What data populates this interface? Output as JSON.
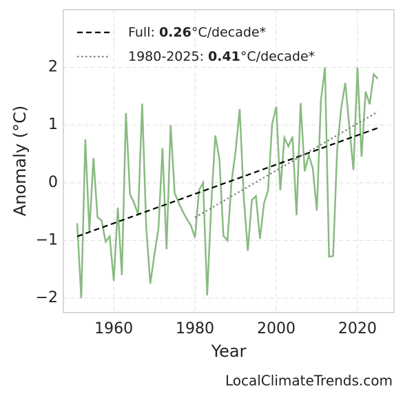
{
  "chart_data": {
    "type": "line",
    "x": [
      1951,
      1952,
      1953,
      1954,
      1955,
      1956,
      1957,
      1958,
      1959,
      1960,
      1961,
      1962,
      1963,
      1964,
      1965,
      1966,
      1967,
      1968,
      1969,
      1970,
      1971,
      1972,
      1973,
      1974,
      1975,
      1976,
      1977,
      1978,
      1979,
      1980,
      1981,
      1982,
      1983,
      1984,
      1985,
      1986,
      1987,
      1988,
      1989,
      1990,
      1991,
      1992,
      1993,
      1994,
      1995,
      1996,
      1997,
      1998,
      1999,
      2000,
      2001,
      2002,
      2003,
      2004,
      2005,
      2006,
      2007,
      2008,
      2009,
      2010,
      2011,
      2012,
      2013,
      2014,
      2015,
      2016,
      2017,
      2018,
      2019,
      2020,
      2021,
      2022,
      2023,
      2024,
      2025
    ],
    "series": [
      {
        "color": "#88bb80",
        "values": [
          -0.7,
          -2.0,
          0.75,
          -0.85,
          0.43,
          -0.6,
          -0.65,
          -1.02,
          -0.93,
          -1.7,
          -0.43,
          -1.6,
          1.21,
          -0.2,
          -0.35,
          -0.55,
          1.37,
          -0.78,
          -1.75,
          -1.25,
          -0.8,
          0.6,
          -1.15,
          1.0,
          -0.18,
          -0.35,
          -0.5,
          -0.63,
          -0.74,
          -0.95,
          -0.13,
          0.0,
          -1.95,
          -0.38,
          0.82,
          0.42,
          -0.92,
          -1.0,
          0.02,
          0.55,
          1.28,
          -0.25,
          -1.18,
          -0.3,
          -0.23,
          -0.97,
          -0.35,
          -0.13,
          1.02,
          1.32,
          -0.13,
          0.78,
          0.63,
          0.8,
          -0.56,
          1.38,
          0.2,
          0.48,
          0.25,
          -0.48,
          1.43,
          2.0,
          -1.28,
          -1.27,
          0.58,
          1.3,
          1.73,
          0.97,
          0.22,
          2.0,
          0.45,
          1.58,
          1.36,
          1.88,
          1.8
        ]
      }
    ],
    "trend_lines": [
      {
        "name_parts": [
          "Full: ",
          "0.26",
          "°C/decade*"
        ],
        "color": "#000000",
        "dash": "8,5",
        "x": [
          1951,
          2025
        ],
        "values": [
          -0.93,
          0.95
        ]
      },
      {
        "name_parts": [
          "1980-2025: ",
          "0.41",
          "°C/decade*"
        ],
        "color": "#808080",
        "dash": "2.5,3.5",
        "x": [
          1980,
          2025
        ],
        "values": [
          -0.6,
          1.23
        ]
      }
    ],
    "xlabel": "Year",
    "ylabel": "Anomaly (°C)",
    "source": "LocalClimateTrends.com",
    "xlim": [
      1947.6,
      2029.0
    ],
    "ylim": [
      -2.25,
      3.0
    ],
    "xticks": [
      1960,
      1980,
      2000,
      2020
    ],
    "yticks": [
      {
        "value": -2,
        "label": "−2"
      },
      {
        "value": -1,
        "label": "−1"
      },
      0,
      1,
      2
    ],
    "grid": true,
    "legend": "upper left"
  }
}
